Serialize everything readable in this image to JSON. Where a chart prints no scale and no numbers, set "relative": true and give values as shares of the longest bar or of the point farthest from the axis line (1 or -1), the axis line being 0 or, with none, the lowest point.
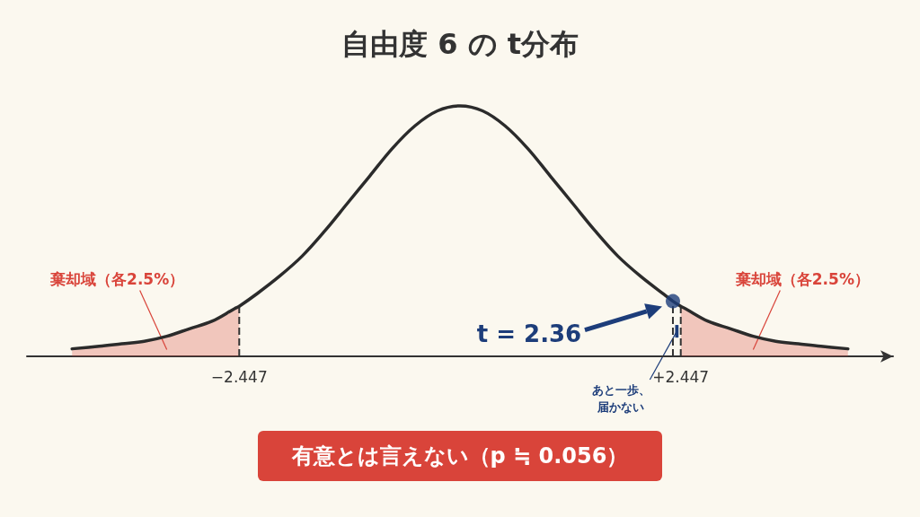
{
  "chart_data": {
    "type": "line",
    "title": "自由度 6 の t分布",
    "relative": true,
    "grid": false,
    "xlim": [
      -4.8,
      4.8
    ],
    "xticks": [
      {
        "value": -2.447,
        "label": "−2.447"
      },
      {
        "value": 2.447,
        "label": "+2.447"
      }
    ],
    "series": [
      {
        "color": "#2b2b2b",
        "x": [
          -4.3,
          -4,
          -3.75,
          -3.5,
          -3.25,
          -3,
          -2.75,
          -2.5,
          -2.447,
          -2.25,
          -2,
          -1.75,
          -1.5,
          -1.25,
          -1,
          -0.75,
          -0.5,
          -0.25,
          0,
          0.25,
          0.5,
          0.75,
          1,
          1.25,
          1.5,
          1.75,
          2,
          2.25,
          2.36,
          2.447,
          2.5,
          2.75,
          3,
          3.25,
          3.5,
          3.75,
          4,
          4.3
        ],
        "values": [
          0.03,
          0.04,
          0.05,
          0.06,
          0.08,
          0.11,
          0.14,
          0.19,
          0.2,
          0.25,
          0.32,
          0.4,
          0.5,
          0.61,
          0.72,
          0.83,
          0.92,
          0.98,
          1,
          0.98,
          0.92,
          0.83,
          0.72,
          0.61,
          0.5,
          0.4,
          0.32,
          0.25,
          0.22,
          0.2,
          0.19,
          0.14,
          0.11,
          0.08,
          0.06,
          0.05,
          0.04,
          0.03
        ]
      },
      {
        "type": "area",
        "color": "#d9443a",
        "x": [
          -4.3,
          -4,
          -3.75,
          -3.5,
          -3.25,
          -3,
          -2.75,
          -2.5,
          -2.447
        ],
        "values": [
          0.03,
          0.04,
          0.05,
          0.06,
          0.08,
          0.11,
          0.14,
          0.19,
          0.2
        ]
      },
      {
        "type": "area",
        "color": "#d9443a",
        "x": [
          2.447,
          2.5,
          2.75,
          3,
          3.25,
          3.5,
          3.75,
          4,
          4.3
        ],
        "values": [
          0.2,
          0.19,
          0.14,
          0.11,
          0.08,
          0.06,
          0.05,
          0.04,
          0.03
        ]
      },
      {
        "type": "scatter",
        "color": "#1d3d7a",
        "x": [
          2.36
        ],
        "values": [
          0.22
        ]
      }
    ],
    "ref_lines": [
      {
        "axis": "x",
        "value": -2.447,
        "line_style": "dashed",
        "color": "#333333"
      },
      {
        "axis": "x",
        "value": 2.36,
        "line_style": "dashed",
        "color": "#333333"
      },
      {
        "axis": "x",
        "value": 2.447,
        "line_style": "dashed",
        "color": "#333333"
      }
    ],
    "annotations": [
      "棄却域（各2.5%）",
      "棄却域（各2.5%）",
      "t = 2.36",
      "あと一歩、届かない",
      "有意とは言えない（p ≒ 0.056）"
    ]
  }
}
